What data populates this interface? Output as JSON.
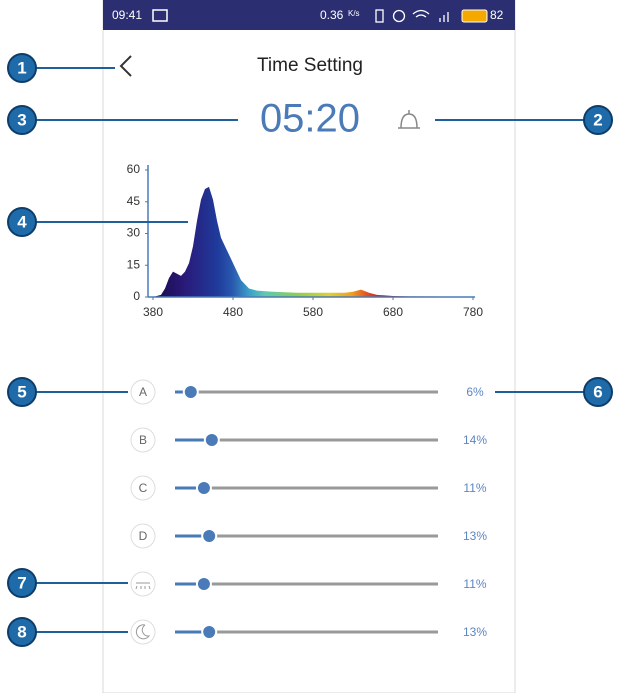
{
  "status_bar": {
    "time": "09:41",
    "speed": "0.36",
    "speed_unit": "K/s",
    "battery": "82"
  },
  "header": {
    "title": "Time Setting"
  },
  "clock": {
    "time": "05:20"
  },
  "callouts": [
    "1",
    "2",
    "3",
    "4",
    "5",
    "6",
    "7",
    "8"
  ],
  "spectrum": {
    "type": "area",
    "x": [
      380,
      390,
      395,
      400,
      405,
      410,
      415,
      420,
      425,
      430,
      435,
      440,
      445,
      450,
      455,
      460,
      465,
      470,
      475,
      480,
      485,
      490,
      500,
      510,
      530,
      560,
      600,
      620,
      630,
      640,
      650,
      660,
      680,
      700,
      780
    ],
    "values": [
      0,
      1,
      4,
      9,
      12,
      11,
      10,
      12,
      16,
      24,
      36,
      46,
      51,
      52,
      46,
      36,
      28,
      24,
      20,
      16,
      12,
      8,
      4,
      3,
      2.5,
      2,
      2,
      2,
      2.5,
      3.5,
      2,
      1,
      0.5,
      0.3,
      0.2
    ],
    "xlim": [
      380,
      780
    ],
    "ylim": [
      0,
      60
    ],
    "xticks": [
      380,
      480,
      580,
      680,
      780
    ],
    "yticks": [
      0,
      15,
      30,
      45,
      60
    ]
  },
  "channels": [
    {
      "label": "A",
      "value": 6,
      "value_label": "6%"
    },
    {
      "label": "B",
      "value": 14,
      "value_label": "14%"
    },
    {
      "label": "C",
      "value": 11,
      "value_label": "11%"
    },
    {
      "label": "D",
      "value": 13,
      "value_label": "13%"
    },
    {
      "value": 11,
      "value_label": "11%"
    },
    {
      "value": 13,
      "value_label": "13%"
    }
  ]
}
